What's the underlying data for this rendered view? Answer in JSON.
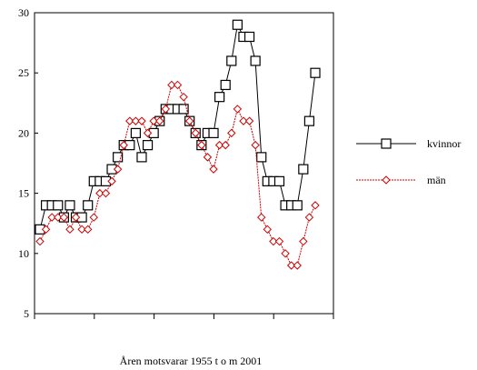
{
  "chart_data": {
    "type": "line",
    "x": [
      1955,
      1956,
      1957,
      1958,
      1959,
      1960,
      1961,
      1962,
      1963,
      1964,
      1965,
      1966,
      1967,
      1968,
      1969,
      1970,
      1971,
      1972,
      1973,
      1974,
      1975,
      1976,
      1977,
      1978,
      1979,
      1980,
      1981,
      1982,
      1983,
      1984,
      1985,
      1986,
      1987,
      1988,
      1989,
      1990,
      1991,
      1992,
      1993,
      1994,
      1995,
      1996,
      1997,
      1998,
      1999,
      2000,
      2001
    ],
    "series": [
      {
        "name": "kvinnor",
        "color": "#000000",
        "marker": "square",
        "values": [
          12,
          14,
          14,
          14,
          13,
          14,
          13,
          13,
          14,
          16,
          16,
          16,
          17,
          18,
          19,
          19,
          20,
          18,
          19,
          20,
          21,
          22,
          22,
          22,
          22,
          21,
          20,
          19,
          20,
          20,
          23,
          24,
          26,
          29,
          28,
          28,
          26,
          18,
          16,
          16,
          16,
          14,
          14,
          14,
          17,
          21,
          25
        ]
      },
      {
        "name": "män",
        "color": "#cc0000",
        "marker": "diamond",
        "values": [
          11,
          12,
          13,
          13,
          13,
          12,
          13,
          12,
          12,
          13,
          15,
          15,
          16,
          17,
          19,
          21,
          21,
          21,
          20,
          21,
          21,
          22,
          24,
          24,
          23,
          21,
          20,
          19,
          18,
          17,
          19,
          19,
          20,
          22,
          21,
          21,
          19,
          13,
          12,
          11,
          11,
          10,
          9,
          9,
          11,
          13,
          14
        ]
      }
    ],
    "title": "",
    "xlabel": "Åren motsvarar 1955 t o m 2001",
    "ylabel": "",
    "ylim": [
      5,
      30
    ],
    "yticks": [
      5,
      10,
      15,
      20,
      25,
      30
    ],
    "x_tick_count": 6,
    "grid": false,
    "legend_position": "right"
  }
}
